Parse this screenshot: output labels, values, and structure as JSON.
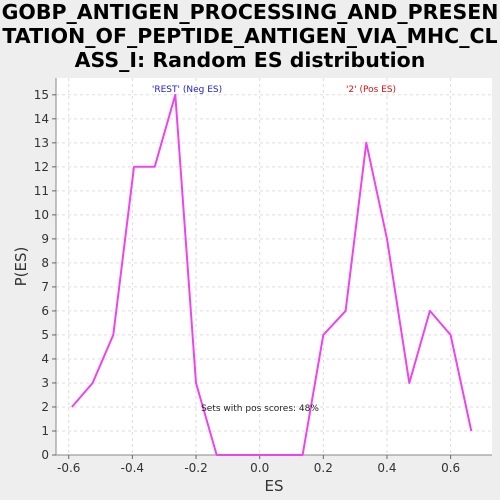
{
  "title_lines": [
    "GOBP_ANTIGEN_PROCESSING_AND_PRESEN",
    "TATION_OF_PEPTIDE_ANTIGEN_VIA_MHC_CL",
    "ASS_I: Random ES distribution"
  ],
  "colors": {
    "series": "#ee44ee",
    "neg_label": "#2222cc",
    "pos_label": "#dd1111",
    "plot_bg": "#ffffff",
    "grid": "#dddddd"
  },
  "chart_data": {
    "type": "line",
    "xlabel": "ES",
    "ylabel": "P(ES)",
    "xlim": [
      -0.64,
      0.73
    ],
    "ylim": [
      0,
      15.7
    ],
    "xticks": [
      -0.6,
      -0.4,
      -0.2,
      0.0,
      0.2,
      0.4,
      0.6
    ],
    "xtick_labels": [
      "-0.6",
      "-0.4",
      "-0.2",
      "0.0",
      "0.2",
      "0.4",
      "0.6"
    ],
    "yticks": [
      0,
      1,
      2,
      3,
      4,
      5,
      6,
      7,
      8,
      9,
      10,
      11,
      12,
      13,
      14,
      15
    ],
    "grid": true,
    "series": [
      {
        "x": [
          -0.59,
          -0.525,
          -0.46,
          -0.395,
          -0.33,
          -0.265,
          -0.2,
          -0.135,
          -0.07,
          -0.005,
          0.06,
          0.135,
          0.2,
          0.27,
          0.335,
          0.4,
          0.47,
          0.535,
          0.6,
          0.665
        ],
        "y": [
          2,
          3,
          5,
          12,
          12,
          15,
          3,
          0,
          0,
          0,
          0,
          0,
          5,
          6,
          13,
          9,
          3,
          6,
          5,
          1
        ]
      }
    ],
    "annotations": {
      "neg_label": "'REST' (Neg ES)",
      "pos_label": "'2' (Pos ES)",
      "pos_scores": "Sets with pos scores: 48%"
    }
  }
}
